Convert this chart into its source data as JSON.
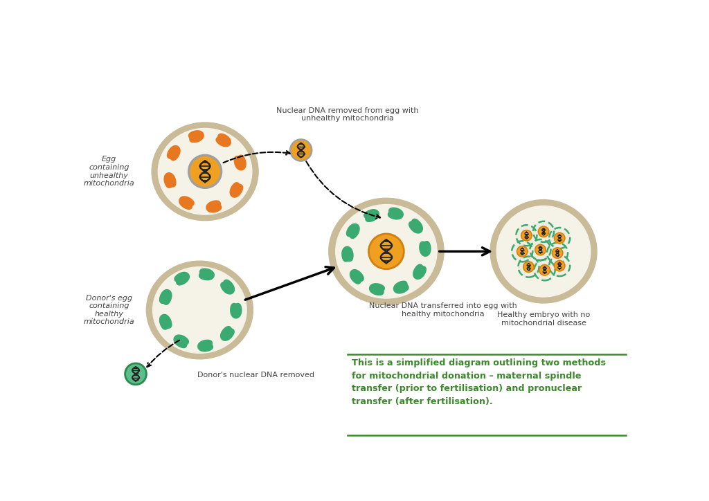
{
  "bg_color": "#ffffff",
  "cell_outer_color": "#c9bb98",
  "cell_inner_color": "#f5f2e8",
  "nucleus_color": "#f0a020",
  "nucleus_border_gray": "#a0a0a0",
  "nucleus_border_orange": "#d08010",
  "dna_color": "#222222",
  "mito_orange_color": "#e87820",
  "mito_green_color": "#3aaa70",
  "small_cell_bg_green": "#5abf8a",
  "arrow_color": "#1a1a1a",
  "text_color": "#444444",
  "green_text_color": "#3a8a2a",
  "caption_text": "This is a simplified diagram outlining two methods\nfor mitochondrial donation – maternal spindle\ntransfer (prior to fertilisation) and pronuclear\ntransfer (after fertilisation).",
  "label_egg_unhealthy": "Egg\ncontaining\nunhealthy\nmitochondria",
  "label_nuclear_removed": "Nuclear DNA removed from egg with\nunhealthy mitochondria",
  "label_nuclear_transferred": "Nuclear DNA transferred into egg with\nhealthy mitochondria",
  "label_donor_egg": "Donor's egg\ncontaining\nhealthy\nmitochondria",
  "label_donor_dna_removed": "Donor's nuclear DNA removed",
  "label_healthy_embryo": "Healthy embryo with no\nmitochondrial disease"
}
